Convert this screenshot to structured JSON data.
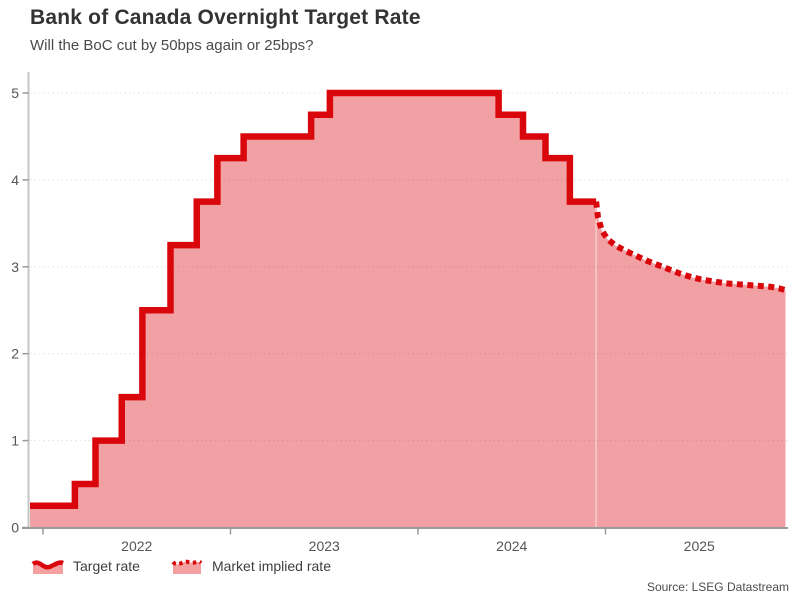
{
  "header": {
    "title": "Bank of Canada Overnight Target Rate",
    "subtitle": "Will the BoC cut by 50bps again or 25bps?"
  },
  "legend": {
    "items": [
      {
        "label": "Target rate",
        "style": "solid"
      },
      {
        "label": "Market implied rate",
        "style": "dotted"
      }
    ],
    "position": "bottom-left"
  },
  "source": {
    "text": "Source: LSEG Datastream"
  },
  "colors": {
    "line": "#d9070b",
    "fill": "rgba(217,8,12,0.38)",
    "fill_solid": "#f4a0a0",
    "grid": "#e0e0e0",
    "axis_y": "#c6c6c6",
    "axis_x": "#9b9b9b",
    "tick": "#999999",
    "tick_text": "#555555",
    "divider": "rgba(255,255,255,0.45)"
  },
  "chart_data": {
    "type": "area",
    "title": "Bank of Canada Overnight Target Rate",
    "subtitle": "Will the BoC cut by 50bps again or 25bps?",
    "xlabel": "",
    "ylabel": "",
    "ylim": [
      0,
      5.2
    ],
    "y_ticks": [
      0,
      1,
      2,
      3,
      4,
      5
    ],
    "x_ticks": [
      2022,
      2023,
      2024,
      2025
    ],
    "x_range": [
      2021.93,
      2025.96
    ],
    "grid": "horizontal-dotted",
    "legend_position": "bottom",
    "series": [
      {
        "name": "Target rate",
        "style": "step-solid",
        "points": [
          [
            2021.93,
            0.25
          ],
          [
            2022.17,
            0.5
          ],
          [
            2022.28,
            1.0
          ],
          [
            2022.42,
            1.5
          ],
          [
            2022.53,
            2.5
          ],
          [
            2022.68,
            3.25
          ],
          [
            2022.82,
            3.75
          ],
          [
            2022.93,
            4.25
          ],
          [
            2023.07,
            4.5
          ],
          [
            2023.43,
            4.75
          ],
          [
            2023.53,
            5.0
          ],
          [
            2024.43,
            4.75
          ],
          [
            2024.56,
            4.5
          ],
          [
            2024.68,
            4.25
          ],
          [
            2024.81,
            3.75
          ],
          [
            2024.95,
            3.75
          ]
        ]
      },
      {
        "name": "Market implied rate",
        "style": "dotted-line",
        "points": [
          [
            2024.95,
            3.75
          ],
          [
            2024.96,
            3.57
          ],
          [
            2024.98,
            3.42
          ],
          [
            2025.01,
            3.32
          ],
          [
            2025.05,
            3.25
          ],
          [
            2025.1,
            3.19
          ],
          [
            2025.16,
            3.13
          ],
          [
            2025.22,
            3.07
          ],
          [
            2025.28,
            3.02
          ],
          [
            2025.34,
            2.97
          ],
          [
            2025.4,
            2.92
          ],
          [
            2025.46,
            2.88
          ],
          [
            2025.52,
            2.85
          ],
          [
            2025.58,
            2.83
          ],
          [
            2025.64,
            2.81
          ],
          [
            2025.7,
            2.8
          ],
          [
            2025.76,
            2.79
          ],
          [
            2025.82,
            2.78
          ],
          [
            2025.88,
            2.77
          ],
          [
            2025.93,
            2.75
          ],
          [
            2025.96,
            2.73
          ]
        ]
      }
    ]
  }
}
